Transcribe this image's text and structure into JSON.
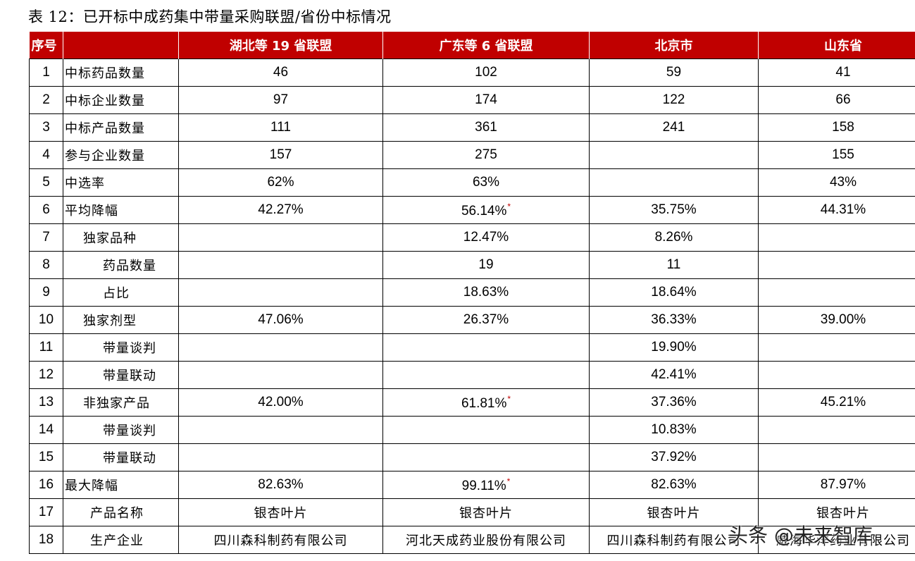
{
  "title": "表 12：已开标中成药集中带量采购联盟/省份中标情况",
  "headers": [
    "序号",
    "",
    "湖北等 19 省联盟",
    "广东等 6 省联盟",
    "北京市",
    "山东省"
  ],
  "rows": [
    {
      "idx": "1",
      "label": "中标药品数量",
      "level": 0,
      "v": [
        "46",
        "102",
        "59",
        "41"
      ],
      "star": [
        false,
        false,
        false,
        false
      ],
      "text": false
    },
    {
      "idx": "2",
      "label": "中标企业数量",
      "level": 0,
      "v": [
        "97",
        "174",
        "122",
        "66"
      ],
      "star": [
        false,
        false,
        false,
        false
      ],
      "text": false
    },
    {
      "idx": "3",
      "label": "中标产品数量",
      "level": 0,
      "v": [
        "111",
        "361",
        "241",
        "158"
      ],
      "star": [
        false,
        false,
        false,
        false
      ],
      "text": false
    },
    {
      "idx": "4",
      "label": "参与企业数量",
      "level": 0,
      "v": [
        "157",
        "275",
        "",
        "155"
      ],
      "star": [
        false,
        false,
        false,
        false
      ],
      "text": false
    },
    {
      "idx": "5",
      "label": "中选率",
      "level": 0,
      "v": [
        "62%",
        "63%",
        "",
        "43%"
      ],
      "star": [
        false,
        false,
        false,
        false
      ],
      "text": false
    },
    {
      "idx": "6",
      "label": "平均降幅",
      "level": 0,
      "v": [
        "42.27%",
        "56.14%",
        "35.75%",
        "44.31%"
      ],
      "star": [
        false,
        true,
        false,
        false
      ],
      "text": false
    },
    {
      "idx": "7",
      "label": "独家品种",
      "level": 1,
      "v": [
        "",
        "12.47%",
        "8.26%",
        ""
      ],
      "star": [
        false,
        false,
        false,
        false
      ],
      "text": false
    },
    {
      "idx": "8",
      "label": "药品数量",
      "level": 2,
      "v": [
        "",
        "19",
        "11",
        ""
      ],
      "star": [
        false,
        false,
        false,
        false
      ],
      "text": false
    },
    {
      "idx": "9",
      "label": "占比",
      "level": 2,
      "v": [
        "",
        "18.63%",
        "18.64%",
        ""
      ],
      "star": [
        false,
        false,
        false,
        false
      ],
      "text": false
    },
    {
      "idx": "10",
      "label": "独家剂型",
      "level": 1,
      "v": [
        "47.06%",
        "26.37%",
        "36.33%",
        "39.00%"
      ],
      "star": [
        false,
        false,
        false,
        false
      ],
      "text": false
    },
    {
      "idx": "11",
      "label": "带量谈判",
      "level": 2,
      "v": [
        "",
        "",
        "19.90%",
        ""
      ],
      "star": [
        false,
        false,
        false,
        false
      ],
      "text": false
    },
    {
      "idx": "12",
      "label": "带量联动",
      "level": 2,
      "v": [
        "",
        "",
        "42.41%",
        ""
      ],
      "star": [
        false,
        false,
        false,
        false
      ],
      "text": false
    },
    {
      "idx": "13",
      "label": "非独家产品",
      "level": 1,
      "v": [
        "42.00%",
        "61.81%",
        "37.36%",
        "45.21%"
      ],
      "star": [
        false,
        true,
        false,
        false
      ],
      "text": false
    },
    {
      "idx": "14",
      "label": "带量谈判",
      "level": 2,
      "v": [
        "",
        "",
        "10.83%",
        ""
      ],
      "star": [
        false,
        false,
        false,
        false
      ],
      "text": false
    },
    {
      "idx": "15",
      "label": "带量联动",
      "level": 2,
      "v": [
        "",
        "",
        "37.92%",
        ""
      ],
      "star": [
        false,
        false,
        false,
        false
      ],
      "text": false
    },
    {
      "idx": "16",
      "label": "最大降幅",
      "level": 0,
      "v": [
        "82.63%",
        "99.11%",
        "82.63%",
        "87.97%"
      ],
      "star": [
        false,
        true,
        false,
        false
      ],
      "text": false
    },
    {
      "idx": "17",
      "label": "产品名称",
      "level": 3,
      "v": [
        "银杏叶片",
        "银杏叶片",
        "银杏叶片",
        "银杏叶片"
      ],
      "star": [
        false,
        false,
        false,
        false
      ],
      "text": true
    },
    {
      "idx": "18",
      "label": "生产企业",
      "level": 3,
      "v": [
        "四川森科制药有限公司",
        "河北天成药业股份有限公司",
        "四川森科制药有限公司",
        "威海华洋药业有限公司"
      ],
      "star": [
        false,
        false,
        false,
        false
      ],
      "text": true
    }
  ],
  "star_symbol": "*",
  "watermark": "头条 @未来智库",
  "colors": {
    "header_bg": "#c00000",
    "header_text": "#ffffff",
    "star": "#c00000"
  }
}
